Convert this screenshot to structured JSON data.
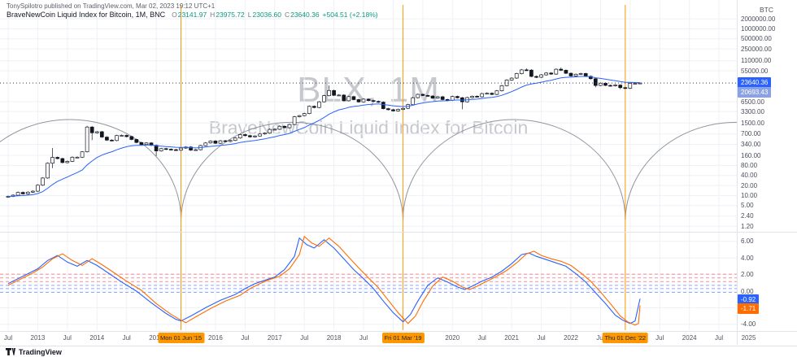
{
  "header": {
    "byline": "TonySpilotro published on TradingView.com, Mar 02, 2023 19:12 UTC+1",
    "legend": {
      "title": "BraveNewCoin Liquid Index for Bitcoin, 1M, BNC",
      "ohlc": [
        {
          "k": "O",
          "v": "23141.97"
        },
        {
          "k": "H",
          "v": "23975.72"
        },
        {
          "k": "L",
          "v": "23036.60"
        },
        {
          "k": "C",
          "v": "23640.36"
        }
      ],
      "change": "+504.51 (+2.18%)"
    }
  },
  "watermark": {
    "line1": "BLX, 1M",
    "line2": "BraveNewCoin Liquid Index for Bitcoin"
  },
  "price_axis": {
    "unit": "BTC",
    "ticks": [
      2000000,
      1000000,
      500000,
      250000,
      110000,
      55000,
      6500,
      3300,
      1500,
      700,
      340,
      160,
      80,
      40,
      20,
      10,
      5,
      2.4,
      1.2
    ],
    "price_label": {
      "value": "23640.36",
      "bg": "#2962ff"
    },
    "ma_label": {
      "value": "20693.43",
      "bg": "#8aa2e3"
    }
  },
  "indicator_axis": {
    "ticks": [
      6,
      4,
      2,
      0,
      -2,
      -4
    ],
    "labels": [
      {
        "value": "-0.92",
        "bg": "#2962ff"
      },
      {
        "value": "-1.71",
        "bg": "#ff6d00"
      }
    ]
  },
  "time_axis": {
    "labels": [
      {
        "i": 0,
        "t": "Jul"
      },
      {
        "i": 6,
        "t": "2013"
      },
      {
        "i": 12,
        "t": "Jul"
      },
      {
        "i": 18,
        "t": "2014"
      },
      {
        "i": 24,
        "t": "Jul"
      },
      {
        "i": 30,
        "t": "2015"
      },
      {
        "i": 42,
        "t": "2016"
      },
      {
        "i": 48,
        "t": "Jul"
      },
      {
        "i": 54,
        "t": "2017"
      },
      {
        "i": 60,
        "t": "Jul"
      },
      {
        "i": 66,
        "t": "2018"
      },
      {
        "i": 72,
        "t": "Jul"
      },
      {
        "i": 90,
        "t": "2020"
      },
      {
        "i": 96,
        "t": "Jul"
      },
      {
        "i": 102,
        "t": "2021"
      },
      {
        "i": 108,
        "t": "Jul"
      },
      {
        "i": 114,
        "t": "2022"
      },
      {
        "i": 120,
        "t": "Jul"
      },
      {
        "i": 132,
        "t": "Jul"
      },
      {
        "i": 138,
        "t": "2024"
      },
      {
        "i": 144,
        "t": "Jul"
      },
      {
        "i": 150,
        "t": "2025"
      }
    ]
  },
  "events": [
    {
      "i": 35,
      "label": "Mon 01 Jun '15"
    },
    {
      "i": 80,
      "label": "Fri 01 Mar '19"
    },
    {
      "i": 125,
      "label": "Thu 01 Dec '22"
    }
  ],
  "footer": {
    "brand": "TradingView"
  },
  "colors": {
    "up": "#ffffff",
    "down": "#131722",
    "border": "#131722",
    "ma": "#2962ff",
    "event": "#ff9800",
    "osc_blue": "#2962ff",
    "osc_orange": "#ff6d00",
    "arc": "#80838e",
    "grid": "#eef1f6"
  },
  "chart_data": {
    "type": "candlestick",
    "symbol": "BLX",
    "interval": "1M",
    "scale": "log",
    "start_month": "2012-07",
    "first_open": 9.0,
    "closes": [
      9.4,
      10.2,
      12.4,
      11.2,
      12.6,
      13.5,
      20.4,
      33.4,
      93,
      139,
      128,
      97,
      106,
      141,
      141,
      204,
      1130,
      757,
      815,
      565,
      458,
      446,
      627,
      635,
      585,
      478,
      388,
      338,
      376,
      319,
      217,
      254,
      244,
      236,
      230,
      264,
      284,
      230,
      236,
      314,
      377,
      430,
      368,
      437,
      416,
      448,
      531,
      673,
      624,
      573,
      610,
      700,
      742,
      963,
      965,
      1190,
      1080,
      1350,
      2300,
      2480,
      2875,
      4735,
      4360,
      6450,
      9900,
      14100,
      10100,
      10300,
      6940,
      9240,
      7500,
      6400,
      7750,
      7020,
      6620,
      6300,
      4020,
      3740,
      3440,
      3820,
      4100,
      5320,
      8560,
      10800,
      10000,
      9600,
      8300,
      9150,
      7550,
      7200,
      9350,
      8550,
      6440,
      8620,
      9450,
      9140,
      11350,
      11650,
      10780,
      13800,
      19700,
      29000,
      33100,
      45200,
      58800,
      57750,
      37300,
      35040,
      41550,
      47150,
      43800,
      61300,
      57000,
      46200,
      38480,
      43200,
      45540,
      37650,
      31790,
      19925,
      23300,
      20050,
      19425,
      20490,
      17165,
      16540,
      23130,
      23141.97,
      23640.36
    ],
    "hl_overrides": {
      "9": [
        266,
        66
      ],
      "16": [
        1240,
        null
      ],
      "17": [
        null,
        455
      ],
      "30": [
        null,
        152
      ],
      "65": [
        19900,
        null
      ],
      "92": [
        null,
        3850
      ],
      "105": [
        64900,
        null
      ],
      "112": [
        69000,
        null
      ],
      "119": [
        null,
        17600
      ],
      "124": [
        null,
        15480
      ]
    },
    "current": {
      "o": 23141.97,
      "h": 23975.72,
      "l": 23036.6,
      "c": 23640.36
    },
    "price_line": 23640.36,
    "cycle_arcs": {
      "bottoms_i": [
        -10,
        35,
        80,
        125,
        170
      ]
    },
    "oscillator": {
      "blue": [
        [
          0,
          0.9
        ],
        [
          2,
          1.5
        ],
        [
          4,
          2.1
        ],
        [
          6,
          2.7
        ],
        [
          8,
          3.7
        ],
        [
          10,
          4.3
        ],
        [
          12,
          3.5
        ],
        [
          14,
          3.0
        ],
        [
          16,
          3.7
        ],
        [
          18,
          3.1
        ],
        [
          20,
          2.3
        ],
        [
          23,
          1.1
        ],
        [
          26,
          0.0
        ],
        [
          29,
          -1.4
        ],
        [
          32,
          -2.7
        ],
        [
          34,
          -3.4
        ],
        [
          35,
          -3.6
        ],
        [
          37,
          -3.0
        ],
        [
          40,
          -2.0
        ],
        [
          43,
          -1.1
        ],
        [
          46,
          -0.4
        ],
        [
          48,
          0.3
        ],
        [
          50,
          0.9
        ],
        [
          52,
          1.3
        ],
        [
          54,
          1.7
        ],
        [
          56,
          2.6
        ],
        [
          58,
          4.2
        ],
        [
          59,
          6.4
        ],
        [
          60.5,
          5.6
        ],
        [
          62,
          5.2
        ],
        [
          64,
          6.2
        ],
        [
          66,
          5.2
        ],
        [
          68,
          3.9
        ],
        [
          70,
          2.6
        ],
        [
          72,
          1.5
        ],
        [
          74,
          0.3
        ],
        [
          76,
          -1.2
        ],
        [
          78,
          -2.6
        ],
        [
          80,
          -3.7
        ],
        [
          81.5,
          -2.8
        ],
        [
          83,
          -1.2
        ],
        [
          85,
          0.7
        ],
        [
          87,
          1.6
        ],
        [
          89,
          1.1
        ],
        [
          91,
          0.5
        ],
        [
          92.5,
          0.2
        ],
        [
          94,
          0.6
        ],
        [
          96,
          1.2
        ],
        [
          98,
          1.7
        ],
        [
          100,
          2.4
        ],
        [
          102,
          3.3
        ],
        [
          104,
          4.4
        ],
        [
          105.5,
          4.6
        ],
        [
          107,
          4.2
        ],
        [
          109,
          3.8
        ],
        [
          111,
          3.4
        ],
        [
          113,
          3.0
        ],
        [
          115,
          2.1
        ],
        [
          117,
          1.1
        ],
        [
          119,
          -0.2
        ],
        [
          121,
          -1.5
        ],
        [
          123,
          -2.9
        ],
        [
          124.5,
          -3.5
        ],
        [
          126,
          -3.9
        ],
        [
          127,
          -3.6
        ],
        [
          128,
          -0.92
        ]
      ],
      "orange": [
        [
          0,
          0.7
        ],
        [
          3,
          1.6
        ],
        [
          5,
          2.2
        ],
        [
          7,
          2.9
        ],
        [
          9,
          3.9
        ],
        [
          11,
          4.5
        ],
        [
          13,
          3.7
        ],
        [
          15,
          3.1
        ],
        [
          17,
          3.9
        ],
        [
          19,
          3.2
        ],
        [
          21,
          2.4
        ],
        [
          24,
          1.2
        ],
        [
          27,
          0.1
        ],
        [
          30,
          -1.5
        ],
        [
          33,
          -2.8
        ],
        [
          35,
          -3.5
        ],
        [
          36,
          -3.8
        ],
        [
          38,
          -3.1
        ],
        [
          41,
          -2.1
        ],
        [
          44,
          -1.2
        ],
        [
          47,
          -0.5
        ],
        [
          49,
          0.3
        ],
        [
          51,
          0.9
        ],
        [
          53,
          1.4
        ],
        [
          55,
          1.8
        ],
        [
          57,
          2.7
        ],
        [
          59,
          4.4
        ],
        [
          60,
          6.6
        ],
        [
          61.5,
          5.8
        ],
        [
          63,
          5.4
        ],
        [
          65,
          6.4
        ],
        [
          67,
          5.4
        ],
        [
          69,
          4.1
        ],
        [
          71,
          2.8
        ],
        [
          73,
          1.6
        ],
        [
          75,
          0.4
        ],
        [
          77,
          -1.1
        ],
        [
          79,
          -2.6
        ],
        [
          81,
          -3.9
        ],
        [
          82.5,
          -3.0
        ],
        [
          84,
          -1.3
        ],
        [
          86,
          0.6
        ],
        [
          88,
          1.7
        ],
        [
          90,
          1.2
        ],
        [
          92,
          0.5
        ],
        [
          93.5,
          0.2
        ],
        [
          95,
          0.6
        ],
        [
          97,
          1.2
        ],
        [
          99,
          1.8
        ],
        [
          101,
          2.5
        ],
        [
          103,
          3.4
        ],
        [
          105,
          4.5
        ],
        [
          106.5,
          4.8
        ],
        [
          108,
          4.3
        ],
        [
          110,
          3.9
        ],
        [
          112,
          3.6
        ],
        [
          114,
          3.1
        ],
        [
          116,
          2.2
        ],
        [
          118,
          1.2
        ],
        [
          120,
          -0.1
        ],
        [
          122,
          -1.5
        ],
        [
          124,
          -3.0
        ],
        [
          125.5,
          -3.7
        ],
        [
          127,
          -4.1
        ],
        [
          127.7,
          -3.9
        ],
        [
          128,
          -1.71
        ]
      ],
      "dashed_levels": [
        {
          "v": 2.05,
          "c": "#f23645"
        },
        {
          "v": 1.6,
          "c": "#f23645"
        },
        {
          "v": 1.15,
          "c": "#f23645"
        },
        {
          "v": 0.7,
          "c": "#2962ff"
        },
        {
          "v": 0.3,
          "c": "#2962ff"
        },
        {
          "v": -0.15,
          "c": "#2962ff"
        }
      ]
    }
  }
}
